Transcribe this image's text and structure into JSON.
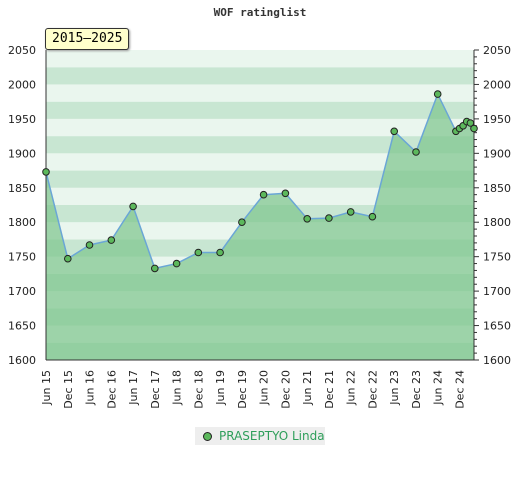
{
  "chart_data": {
    "type": "area",
    "title": "WOF ratinglist",
    "period_label": "2015–2025",
    "series": [
      {
        "name": "PRASEPTYO Linda",
        "points": [
          {
            "x": "2015-06",
            "y": 1873
          },
          {
            "x": "2015-12",
            "y": 1747
          },
          {
            "x": "2016-06",
            "y": 1767
          },
          {
            "x": "2016-12",
            "y": 1774
          },
          {
            "x": "2017-06",
            "y": 1823
          },
          {
            "x": "2017-12",
            "y": 1733
          },
          {
            "x": "2018-06",
            "y": 1740
          },
          {
            "x": "2018-12",
            "y": 1756
          },
          {
            "x": "2019-06",
            "y": 1756
          },
          {
            "x": "2019-12",
            "y": 1800
          },
          {
            "x": "2020-06",
            "y": 1840
          },
          {
            "x": "2020-12",
            "y": 1842
          },
          {
            "x": "2021-06",
            "y": 1805
          },
          {
            "x": "2021-12",
            "y": 1806
          },
          {
            "x": "2022-06",
            "y": 1815
          },
          {
            "x": "2022-12",
            "y": 1808
          },
          {
            "x": "2023-06",
            "y": 1932
          },
          {
            "x": "2023-12",
            "y": 1902
          },
          {
            "x": "2024-06",
            "y": 1986
          },
          {
            "x": "2024-11",
            "y": 1932
          },
          {
            "x": "2024-12",
            "y": 1936
          },
          {
            "x": "2025-01",
            "y": 1940
          },
          {
            "x": "2025-02",
            "y": 1946
          },
          {
            "x": "2025-03",
            "y": 1944
          },
          {
            "x": "2025-04",
            "y": 1936
          }
        ]
      }
    ],
    "x_ticks": [
      {
        "label": "Jun 15",
        "x": "2015-06"
      },
      {
        "label": "Dec 15",
        "x": "2015-12"
      },
      {
        "label": "Jun 16",
        "x": "2016-06"
      },
      {
        "label": "Dec 16",
        "x": "2016-12"
      },
      {
        "label": "Jun 17",
        "x": "2017-06"
      },
      {
        "label": "Dec 17",
        "x": "2017-12"
      },
      {
        "label": "Jun 18",
        "x": "2018-06"
      },
      {
        "label": "Dec 18",
        "x": "2018-12"
      },
      {
        "label": "Jun 19",
        "x": "2019-06"
      },
      {
        "label": "Dec 19",
        "x": "2019-12"
      },
      {
        "label": "Jun 20",
        "x": "2020-06"
      },
      {
        "label": "Dec 20",
        "x": "2020-12"
      },
      {
        "label": "Jun 21",
        "x": "2021-06"
      },
      {
        "label": "Dec 21",
        "x": "2021-12"
      },
      {
        "label": "Jun 22",
        "x": "2022-06"
      },
      {
        "label": "Dec 22",
        "x": "2022-12"
      },
      {
        "label": "Jun 23",
        "x": "2023-06"
      },
      {
        "label": "Dec 23",
        "x": "2023-12"
      },
      {
        "label": "Jun 24",
        "x": "2024-06"
      },
      {
        "label": "Dec 24",
        "x": "2024-12"
      }
    ],
    "xlim": [
      "2015-06",
      "2025-04"
    ],
    "ylim": [
      1600,
      2050
    ],
    "y_ticks": [
      1600,
      1650,
      1700,
      1750,
      1800,
      1850,
      1900,
      1950,
      2000,
      2050
    ],
    "y_axis_both_sides": true,
    "grid": "horizontal bands",
    "legend_position": "bottom-center",
    "colors": {
      "line": "#6aa6d6",
      "marker": "#5cb85c",
      "area": "#7cc48c",
      "band_dark": "#c8e6d2",
      "band_light": "#eaf6ee"
    }
  }
}
